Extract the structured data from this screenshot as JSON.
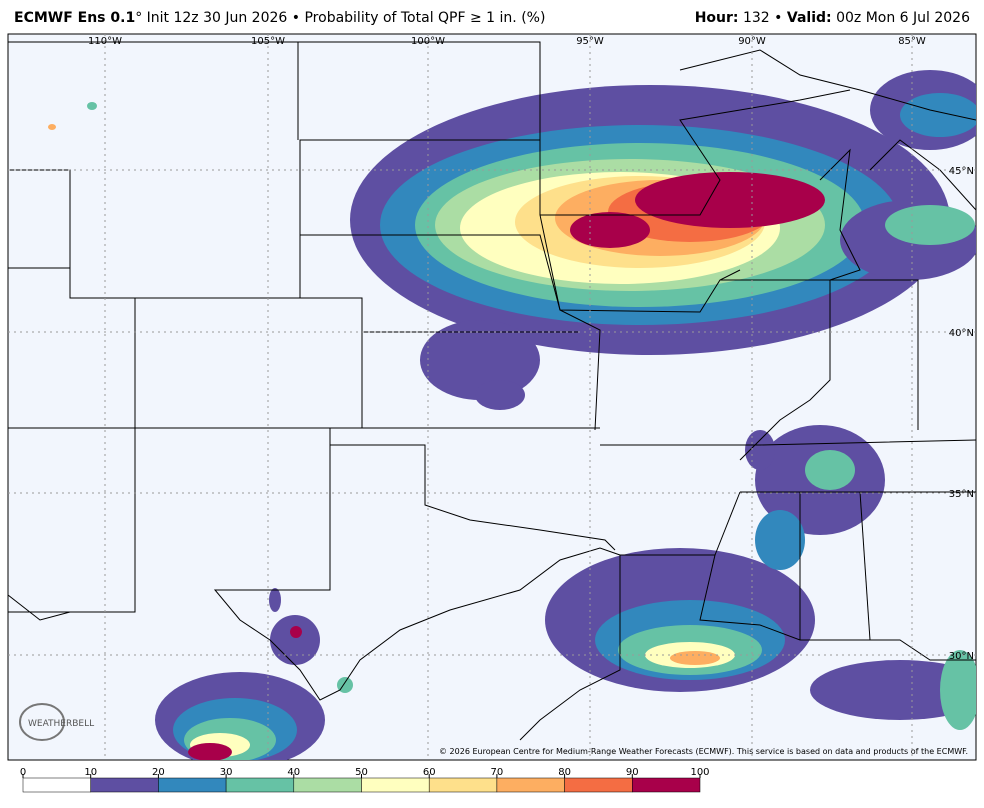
{
  "header": {
    "model": "ECMWF Ens 0.1",
    "init": "° Init 12z 30 Jun 2026",
    "separator": "•",
    "product": "Probability of Total QPF ≥ 1 in. (%)",
    "hour_label": "Hour:",
    "hour": "132",
    "valid_label": "Valid:",
    "valid": "00z Mon 6 Jul 2026"
  },
  "map": {
    "lon_labels": [
      "110°W",
      "105°W",
      "100°W",
      "95°W",
      "90°W",
      "85°W"
    ],
    "lat_labels": [
      "45°N",
      "40°N",
      "35°N",
      "30°N"
    ],
    "logo": "WEATHERBELL",
    "credit": "© 2026 European Centre for Medium-Range Weather Forecasts (ECMWF). This service is based on data and products of the ECMWF."
  },
  "colorbar": {
    "ticks": [
      0,
      10,
      20,
      30,
      40,
      50,
      60,
      70,
      80,
      90,
      100
    ],
    "colors": [
      "#ffffff",
      "#5e4fa2",
      "#3288bd",
      "#66c2a5",
      "#abdda4",
      "#ffffbf",
      "#fee08b",
      "#fdae61",
      "#f46d43",
      "#a8004a"
    ]
  }
}
